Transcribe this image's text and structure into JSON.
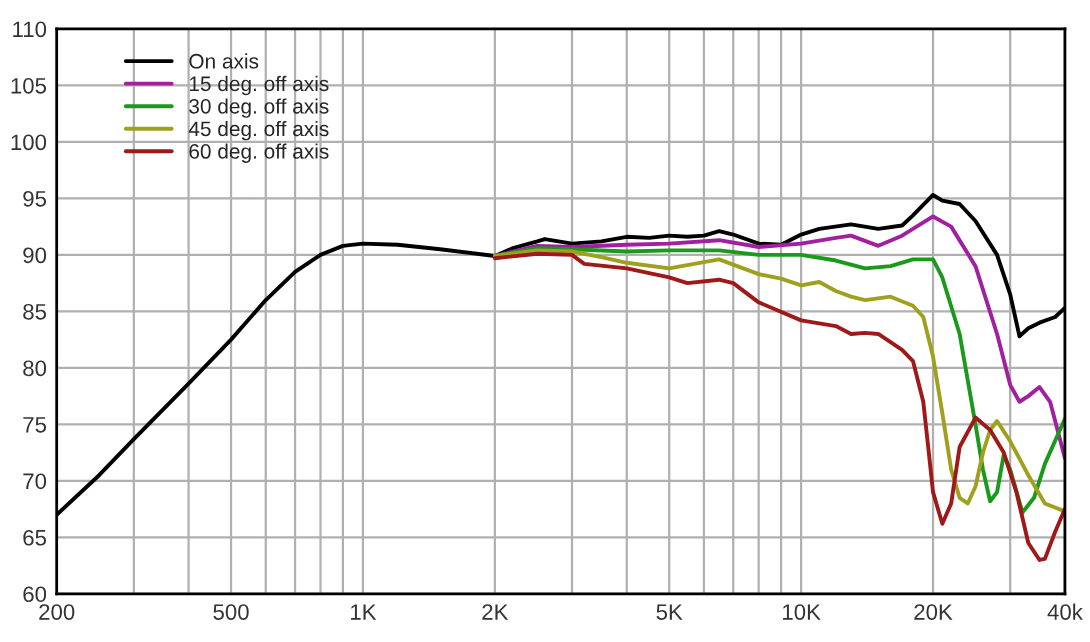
{
  "chart_data": {
    "type": "line",
    "log": "x",
    "xlim": [
      200,
      40000
    ],
    "ylim": [
      60,
      110
    ],
    "xticks": [
      200,
      {
        "value": 300,
        "label": null
      },
      {
        "value": 400,
        "label": null
      },
      500,
      {
        "value": 600,
        "label": null
      },
      {
        "value": 700,
        "label": null
      },
      {
        "value": 800,
        "label": null
      },
      {
        "value": 900,
        "label": null
      },
      {
        "value": 1000,
        "label": "1K"
      },
      {
        "value": 2000,
        "label": "2K"
      },
      {
        "value": 3000,
        "label": null
      },
      {
        "value": 4000,
        "label": null
      },
      {
        "value": 5000,
        "label": "5K"
      },
      {
        "value": 6000,
        "label": null
      },
      {
        "value": 7000,
        "label": null
      },
      {
        "value": 8000,
        "label": null
      },
      {
        "value": 9000,
        "label": null
      },
      {
        "value": 10000,
        "label": "10K"
      },
      {
        "value": 20000,
        "label": "20K"
      },
      {
        "value": 30000,
        "label": null
      },
      {
        "value": 40000,
        "label": "40k"
      }
    ],
    "yticks": [
      60,
      65,
      70,
      75,
      80,
      85,
      90,
      95,
      100,
      105,
      110
    ],
    "grid": true,
    "legend": "top left",
    "line_style": "solid",
    "marker": "none",
    "series": [
      {
        "name": "On axis",
        "color": "#000000",
        "x": [
          200,
          250,
          300,
          400,
          500,
          600,
          700,
          800,
          900,
          1000,
          1200,
          1500,
          2000,
          2200,
          2500,
          2600,
          3000,
          3500,
          4000,
          4500,
          5000,
          5500,
          6000,
          6500,
          7000,
          8000,
          9000,
          10000,
          11000,
          13000,
          15000,
          17000,
          18000,
          20000,
          21000,
          23000,
          25000,
          28000,
          30000,
          31500,
          33000,
          35000,
          38000,
          40000
        ],
        "values": [
          67,
          70.5,
          73.7,
          78.6,
          82.5,
          86,
          88.5,
          90,
          90.8,
          91,
          90.9,
          90.5,
          89.9,
          90.6,
          91.2,
          91.4,
          91,
          91.2,
          91.6,
          91.5,
          91.7,
          91.6,
          91.7,
          92.1,
          91.8,
          91,
          90.9,
          91.8,
          92.3,
          92.7,
          92.3,
          92.6,
          93.5,
          95.3,
          94.8,
          94.5,
          93,
          90,
          86.5,
          82.8,
          83.5,
          84,
          84.5,
          85.3
        ]
      },
      {
        "name": "15 deg. off axis",
        "color": "#a020a0",
        "x": [
          2000,
          2500,
          3000,
          4000,
          5000,
          6500,
          8000,
          10000,
          12000,
          13000,
          15000,
          17000,
          20000,
          22000,
          25000,
          28000,
          30000,
          31500,
          33000,
          35000,
          37000,
          40000
        ],
        "values": [
          89.9,
          90.8,
          90.7,
          90.9,
          91,
          91.3,
          90.7,
          91,
          91.5,
          91.7,
          90.8,
          91.7,
          93.4,
          92.5,
          89,
          83,
          78.5,
          77,
          77.5,
          78.3,
          77,
          72
        ]
      },
      {
        "name": "30 deg. off axis",
        "color": "#1a9a1a",
        "x": [
          2000,
          2500,
          3000,
          4000,
          5000,
          6500,
          8000,
          10000,
          12000,
          14000,
          16000,
          18000,
          20000,
          21000,
          23000,
          25000,
          26000,
          27000,
          28000,
          29000,
          30000,
          32000,
          34000,
          36000,
          40000
        ],
        "values": [
          89.9,
          90.6,
          90.5,
          90.3,
          90.4,
          90.4,
          90,
          90,
          89.5,
          88.8,
          89,
          89.6,
          89.6,
          88,
          83,
          75,
          71,
          68.2,
          69,
          72.3,
          71,
          67.2,
          68.5,
          71.5,
          75.5
        ]
      },
      {
        "name": "45 deg. off axis",
        "color": "#a0a020",
        "x": [
          2000,
          2500,
          3000,
          3500,
          4000,
          5000,
          6500,
          8000,
          9000,
          10000,
          11000,
          12000,
          13000,
          14000,
          16000,
          18000,
          19000,
          20000,
          21000,
          22000,
          23000,
          24000,
          25000,
          26000,
          27000,
          28000,
          30000,
          33000,
          36000,
          40000
        ],
        "values": [
          89.9,
          90.4,
          90.3,
          89.8,
          89.3,
          88.8,
          89.6,
          88.3,
          87.9,
          87.3,
          87.6,
          86.8,
          86.3,
          86,
          86.3,
          85.5,
          84.5,
          81,
          76,
          71,
          68.5,
          68,
          69.5,
          72.5,
          74.5,
          75.3,
          73.5,
          70.5,
          68,
          67.3
        ]
      },
      {
        "name": "60 deg. off axis",
        "color": "#a01818",
        "x": [
          2000,
          2500,
          3000,
          3200,
          4000,
          5000,
          5500,
          6500,
          7000,
          8000,
          10000,
          12000,
          13000,
          14000,
          15000,
          17000,
          18000,
          19000,
          19500,
          20000,
          21000,
          22000,
          23000,
          25000,
          27000,
          29000,
          31000,
          33000,
          35000,
          36000,
          38000,
          40000
        ],
        "values": [
          89.7,
          90.1,
          90,
          89.2,
          88.8,
          88,
          87.5,
          87.8,
          87.5,
          85.8,
          84.2,
          83.7,
          83,
          83.1,
          83,
          81.6,
          80.6,
          77,
          73,
          69,
          66.2,
          68,
          73,
          75.6,
          74.5,
          72.5,
          69,
          64.5,
          63,
          63.1,
          65.5,
          67.5
        ]
      }
    ]
  }
}
